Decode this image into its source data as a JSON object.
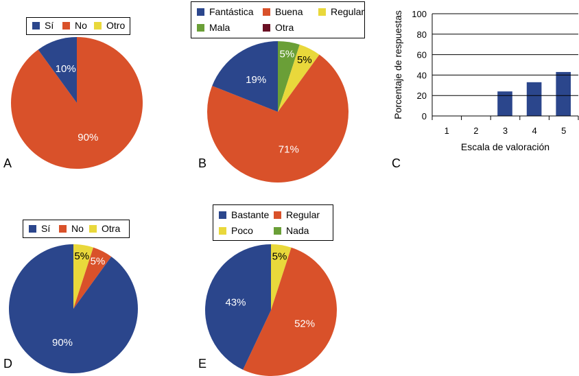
{
  "colors": {
    "blue": "#2b468c",
    "orange": "#d9512a",
    "yellow": "#e9d83b",
    "green": "#6a9f37",
    "darkred": "#6a1024"
  },
  "chart_data": [
    {
      "panel": "A",
      "type": "pie",
      "slices": [
        {
          "label": "No",
          "value": 90,
          "color": "#d9512a",
          "text": "90%"
        },
        {
          "label": "Sí",
          "value": 10,
          "color": "#2b468c",
          "text": "10%"
        }
      ],
      "legend": [
        {
          "label": "Sí",
          "color": "#2b468c"
        },
        {
          "label": "No",
          "color": "#d9512a"
        },
        {
          "label": "Otro",
          "color": "#e9d83b"
        }
      ]
    },
    {
      "panel": "B",
      "type": "pie",
      "slices": [
        {
          "label": "Mala",
          "value": 5,
          "color": "#6a9f37",
          "text": "5%"
        },
        {
          "label": "Regular",
          "value": 5,
          "color": "#e9d83b",
          "text": "5%"
        },
        {
          "label": "Buena",
          "value": 71,
          "color": "#d9512a",
          "text": "71%"
        },
        {
          "label": "Fantástica",
          "value": 19,
          "color": "#2b468c",
          "text": "19%"
        }
      ],
      "legend": [
        {
          "label": "Fantástica",
          "color": "#2b468c"
        },
        {
          "label": "Buena",
          "color": "#d9512a"
        },
        {
          "label": "Regular",
          "color": "#e9d83b"
        },
        {
          "label": "Mala",
          "color": "#6a9f37"
        },
        {
          "label": "Otra",
          "color": "#6a1024"
        }
      ]
    },
    {
      "panel": "C",
      "type": "bar",
      "categories": [
        "1",
        "2",
        "3",
        "4",
        "5"
      ],
      "values": [
        0,
        0,
        24,
        33,
        43
      ],
      "xlabel": "Escala de valoración",
      "ylabel": "Porcentaje de respuestas",
      "ylim": [
        0,
        100
      ],
      "yticks": [
        "0",
        "20",
        "40",
        "60",
        "80",
        "100"
      ],
      "grid": true,
      "color": "#2b468c"
    },
    {
      "panel": "D",
      "type": "pie",
      "slices": [
        {
          "label": "Otra",
          "value": 5,
          "color": "#e9d83b",
          "text": "5%"
        },
        {
          "label": "No",
          "value": 5,
          "color": "#d9512a",
          "text": "5%"
        },
        {
          "label": "Sí",
          "value": 90,
          "color": "#2b468c",
          "text": "90%"
        }
      ],
      "legend": [
        {
          "label": "Sí",
          "color": "#2b468c"
        },
        {
          "label": "No",
          "color": "#d9512a"
        },
        {
          "label": "Otra",
          "color": "#e9d83b"
        }
      ]
    },
    {
      "panel": "E",
      "type": "pie",
      "slices": [
        {
          "label": "Poco",
          "value": 5,
          "color": "#e9d83b",
          "text": "5%"
        },
        {
          "label": "Regular",
          "value": 52,
          "color": "#d9512a",
          "text": "52%"
        },
        {
          "label": "Bastante",
          "value": 43,
          "color": "#2b468c",
          "text": "43%"
        }
      ],
      "legend": [
        {
          "label": "Bastante",
          "color": "#2b468c"
        },
        {
          "label": "Regular",
          "color": "#d9512a"
        },
        {
          "label": "Poco",
          "color": "#e9d83b"
        },
        {
          "label": "Nada",
          "color": "#6a9f37"
        }
      ]
    }
  ]
}
